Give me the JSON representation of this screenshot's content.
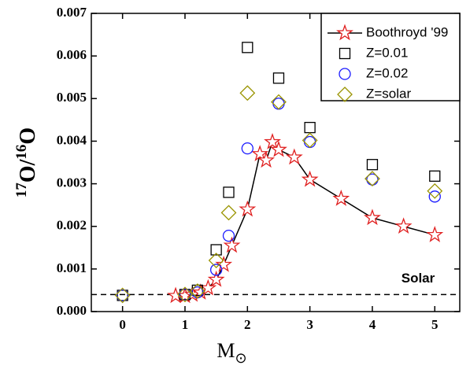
{
  "chart_data": {
    "type": "scatter",
    "xlabel": [
      {
        "text": "M"
      },
      {
        "text": "⊙",
        "sub": true
      }
    ],
    "ylabel": [
      {
        "text": "17",
        "sup": true
      },
      {
        "text": "O/"
      },
      {
        "text": "16",
        "sup": true
      },
      {
        "text": "O"
      }
    ],
    "xlim": [
      -0.5,
      5.4
    ],
    "ylim": [
      0,
      0.007
    ],
    "xticks": [
      0,
      1,
      2,
      3,
      4,
      5
    ],
    "yticks": [
      {
        "value": 0,
        "label": "0.000"
      },
      {
        "value": 0.001,
        "label": "0.001"
      },
      {
        "value": 0.002,
        "label": "0.002"
      },
      {
        "value": 0.003,
        "label": "0.003"
      },
      {
        "value": 0.004,
        "label": "0.004"
      },
      {
        "value": 0.005,
        "label": "0.005"
      },
      {
        "value": 0.006,
        "label": "0.006"
      },
      {
        "value": 0.007,
        "label": "0.007"
      }
    ],
    "hlines": [
      {
        "y": 0.0004,
        "label": "Solar"
      }
    ],
    "legend": "upper right",
    "series": [
      {
        "name": "Boothroyd '99",
        "color": "#e02020",
        "marker": "star",
        "line": true,
        "x": [
          0.85,
          1,
          1.12,
          1.25,
          1.37,
          1.5,
          1.62,
          1.75,
          2,
          2.2,
          2.3,
          2.4,
          2.5,
          2.75,
          3,
          3.5,
          4,
          4.5,
          5
        ],
        "values": [
          0.00037,
          0.00037,
          0.0004,
          0.00045,
          0.00055,
          0.00075,
          0.0011,
          0.00155,
          0.0024,
          0.0037,
          0.00355,
          0.00398,
          0.0038,
          0.00362,
          0.0031,
          0.00265,
          0.0022,
          0.002,
          0.0018
        ]
      },
      {
        "name": "Z=0.01",
        "color": "#000000",
        "marker": "square",
        "x": [
          0,
          1,
          1.2,
          1.5,
          1.7,
          2,
          2.5,
          3,
          4,
          5
        ],
        "values": [
          0.00038,
          0.0004,
          0.0005,
          0.00145,
          0.0028,
          0.0062,
          0.00548,
          0.00432,
          0.00345,
          0.00318
        ]
      },
      {
        "name": "Z=0.02",
        "color": "#1a1aff",
        "marker": "circle",
        "x": [
          0,
          1,
          1.2,
          1.5,
          1.7,
          2,
          2.5,
          3,
          4,
          5
        ],
        "values": [
          0.00038,
          0.0004,
          0.00045,
          0.00098,
          0.00178,
          0.00383,
          0.00488,
          0.00398,
          0.0031,
          0.0027
        ]
      },
      {
        "name": "Z=solar",
        "color": "#9a9400",
        "marker": "diamond",
        "x": [
          0,
          1,
          1.2,
          1.5,
          1.7,
          2,
          2.5,
          3,
          4,
          5
        ],
        "values": [
          0.00038,
          0.0004,
          0.00048,
          0.0012,
          0.00232,
          0.00513,
          0.00492,
          0.00402,
          0.00312,
          0.00283
        ]
      }
    ]
  }
}
